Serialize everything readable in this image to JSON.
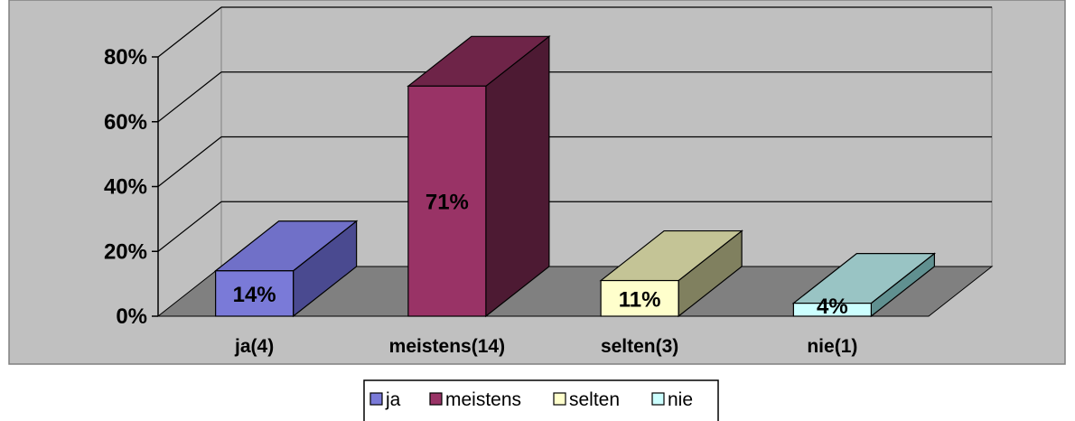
{
  "chart_data": {
    "type": "bar",
    "title": "",
    "xlabel": "",
    "ylabel": "",
    "categories": [
      "ja(4)",
      "meistens(14)",
      "selten(3)",
      "nie(1)"
    ],
    "values": [
      14,
      71,
      11,
      4
    ],
    "data_labels": [
      "14%",
      "71%",
      "11%",
      "4%"
    ],
    "ylim": [
      0,
      80
    ],
    "y_ticks": [
      0,
      20,
      40,
      60,
      80
    ],
    "y_tick_labels": [
      "0%",
      "20%",
      "40%",
      "60%",
      "80%"
    ],
    "grid": true,
    "three_d": true,
    "legend_position": "bottom",
    "legend": [
      "ja",
      "meistens",
      "selten",
      "nie"
    ],
    "colors": [
      "#7a7ad8",
      "#993366",
      "#ffffcc",
      "#ccffff"
    ],
    "side_colors": [
      "#4a4a90",
      "#4d1a33",
      "#80805f",
      "#609090"
    ],
    "top_colors": [
      "#7070c8",
      "#6e2448",
      "#c4c496",
      "#99c4c4"
    ],
    "wall_color": "#c0c0c0",
    "floor_color": "#808080"
  }
}
